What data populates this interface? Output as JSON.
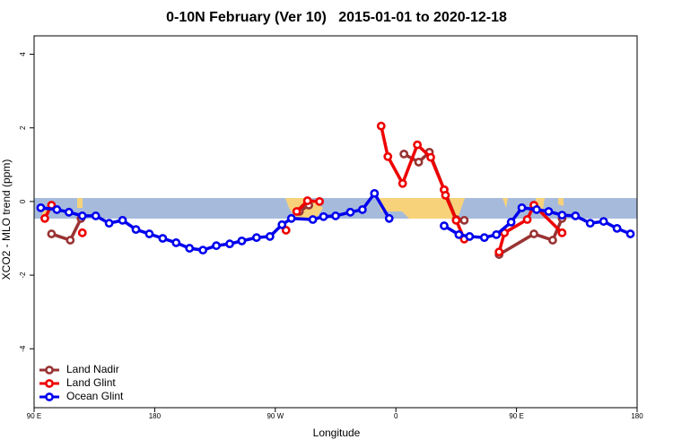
{
  "chart_data": {
    "type": "line",
    "title": "0-10N February (Ver 10)   2015-01-01 to 2020-12-18",
    "x_label": "Longitude",
    "y_label": "XCO2 - MLO trend (ppm)",
    "xlim": [
      90,
      540
    ],
    "xticks": [
      {
        "value": 90,
        "label": "90 E"
      },
      180,
      {
        "value": 270,
        "label": "90 W"
      },
      {
        "value": 360,
        "label": "0"
      },
      {
        "value": 450,
        "label": "90 E"
      },
      {
        "value": 540,
        "label": "180"
      }
    ],
    "ylim": [
      -5.6,
      4.5
    ],
    "yticks": [
      -4,
      -2,
      0,
      2,
      4
    ],
    "legend": "bottom-left",
    "series": [
      {
        "name": "Land Nadir",
        "color": "#993333",
        "x": [
          103,
          117,
          125,
          200,
          288,
          295,
          330,
          366,
          377,
          385,
          396,
          405,
          411,
          430,
          437,
          463,
          477,
          484
        ],
        "values": [
          -0.88,
          -1.05,
          -0.46,
          null,
          -0.27,
          -0.1,
          null,
          1.29,
          1.07,
          1.34,
          0.32,
          -0.49,
          -0.51,
          null,
          -1.44,
          -0.88,
          -1.05,
          -0.46
        ]
      },
      {
        "name": "Land Glint",
        "color": "#ee0000",
        "x": [
          98,
          103,
          110,
          126,
          200,
          278,
          285,
          286,
          294,
          303,
          330,
          349,
          354,
          365,
          376,
          386,
          396,
          397,
          405,
          411,
          430,
          437,
          441,
          458,
          463,
          484
        ],
        "values": [
          -0.46,
          -0.1,
          null,
          -0.85,
          null,
          -0.78,
          null,
          -0.27,
          0.02,
          0.0,
          null,
          2.05,
          1.22,
          0.49,
          1.54,
          1.2,
          0.32,
          0.17,
          -0.51,
          -1.02,
          null,
          -1.37,
          -0.85,
          -0.49,
          -0.1,
          -0.85
        ]
      },
      {
        "name": "Ocean Glint",
        "color": "#0000ee",
        "x": [
          95,
          107,
          116,
          126,
          136,
          146,
          156,
          166,
          176,
          186,
          196,
          206,
          216,
          226,
          236,
          245,
          256,
          266,
          275,
          282,
          298,
          306,
          315,
          326,
          335,
          344,
          355,
          375,
          396,
          407,
          415,
          426,
          435,
          446,
          454,
          465,
          474,
          484,
          494,
          505,
          515,
          525,
          535
        ],
        "values": [
          -0.17,
          -0.22,
          -0.29,
          -0.39,
          -0.39,
          -0.59,
          -0.51,
          -0.76,
          -0.88,
          -1.0,
          -1.12,
          -1.27,
          -1.32,
          -1.2,
          -1.15,
          -1.07,
          -0.98,
          -0.95,
          -0.63,
          -0.46,
          -0.49,
          -0.41,
          -0.39,
          -0.29,
          -0.22,
          0.22,
          -0.46,
          null,
          -0.66,
          -0.9,
          -0.95,
          -0.98,
          -0.9,
          -0.56,
          -0.17,
          -0.22,
          -0.27,
          -0.37,
          -0.39,
          -0.59,
          -0.54,
          -0.73,
          -0.88
        ]
      }
    ]
  }
}
